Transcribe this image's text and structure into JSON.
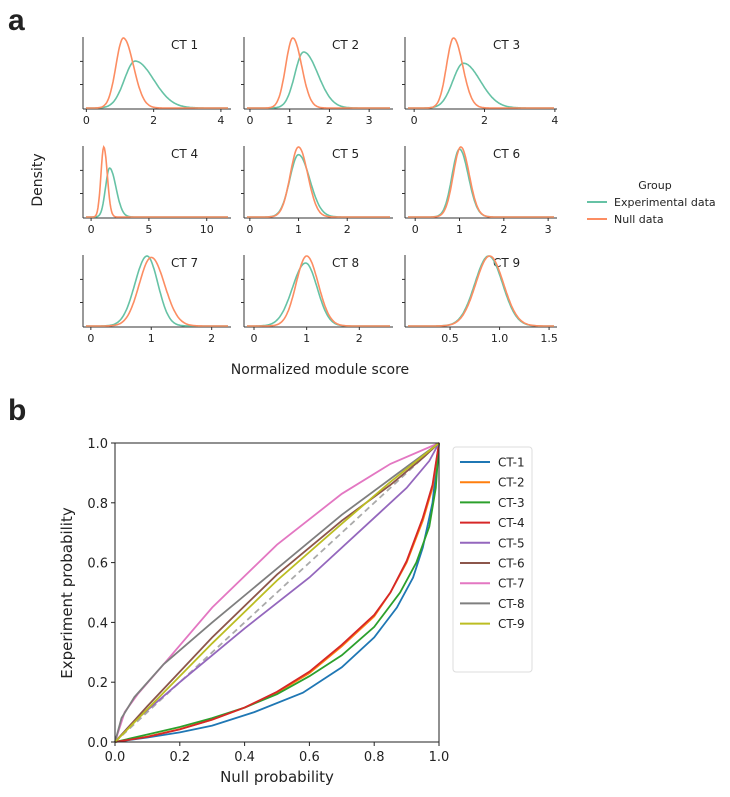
{
  "panel_labels": {
    "a": "a",
    "b": "b"
  },
  "chart_data": [
    {
      "type": "line",
      "subtype": "density",
      "panel": "a",
      "xlabel": "Normalized module score",
      "ylabel": "Density",
      "legend": {
        "title": "Group",
        "placement": "right",
        "entries": [
          "Experimental data",
          "Null data"
        ]
      },
      "colors": {
        "Experimental data": "#66c2a5",
        "Null data": "#fc8d62"
      },
      "subplots": [
        {
          "title": "CT 1",
          "xlim": [
            -0.1,
            4.3
          ],
          "xticks": [
            0,
            2,
            4
          ],
          "xtick_labels": [
            "0",
            "2",
            "4"
          ],
          "null": {
            "mode": 1.1,
            "sd_left": 0.22,
            "sd_right": 0.3,
            "peak": 1.0
          },
          "exp": {
            "mode": 1.45,
            "sd_left": 0.32,
            "sd_right": 0.55,
            "peak": 0.67
          }
        },
        {
          "title": "CT 2",
          "xlim": [
            -0.15,
            3.6
          ],
          "xticks": [
            0,
            1,
            2,
            3
          ],
          "xtick_labels": [
            "0",
            "1",
            "2",
            "3"
          ],
          "null": {
            "mode": 1.08,
            "sd_left": 0.18,
            "sd_right": 0.22,
            "peak": 1.0
          },
          "exp": {
            "mode": 1.35,
            "sd_left": 0.22,
            "sd_right": 0.36,
            "peak": 0.8
          }
        },
        {
          "title": "CT 3",
          "xlim": [
            -0.26,
            4.06
          ],
          "xticks": [
            0,
            2,
            4
          ],
          "xtick_labels": [
            "0",
            "2",
            "4"
          ],
          "null": {
            "mode": 1.12,
            "sd_left": 0.2,
            "sd_right": 0.26,
            "peak": 1.0
          },
          "exp": {
            "mode": 1.4,
            "sd_left": 0.3,
            "sd_right": 0.48,
            "peak": 0.64
          }
        },
        {
          "title": "CT 4",
          "xlim": [
            -0.7,
            12.1
          ],
          "xticks": [
            0,
            5,
            10
          ],
          "xtick_labels": [
            "0",
            "5",
            "10"
          ],
          "null": {
            "mode": 1.1,
            "sd_left": 0.25,
            "sd_right": 0.3,
            "peak": 1.0
          },
          "exp": {
            "mode": 1.6,
            "sd_left": 0.35,
            "sd_right": 0.55,
            "peak": 0.7
          }
        },
        {
          "title": "CT 5",
          "xlim": [
            -0.12,
            2.94
          ],
          "xticks": [
            0,
            1,
            2
          ],
          "xtick_labels": [
            "0",
            "1",
            "2"
          ],
          "null": {
            "mode": 1.0,
            "sd_left": 0.17,
            "sd_right": 0.19,
            "peak": 1.0
          },
          "exp": {
            "mode": 1.0,
            "sd_left": 0.18,
            "sd_right": 0.23,
            "peak": 0.89
          }
        },
        {
          "title": "CT 6",
          "xlim": [
            -0.23,
            3.2
          ],
          "xticks": [
            0,
            1,
            2,
            3
          ],
          "xtick_labels": [
            "0",
            "1",
            "2",
            "3"
          ],
          "null": {
            "mode": 1.03,
            "sd_left": 0.17,
            "sd_right": 0.19,
            "peak": 1.0
          },
          "exp": {
            "mode": 1.0,
            "sd_left": 0.17,
            "sd_right": 0.2,
            "peak": 0.97
          }
        },
        {
          "title": "CT 7",
          "xlim": [
            -0.13,
            2.32
          ],
          "xticks": [
            0,
            1,
            2
          ],
          "xtick_labels": [
            "0",
            "1",
            "2"
          ],
          "null": {
            "mode": 1.0,
            "sd_left": 0.2,
            "sd_right": 0.22,
            "peak": 0.98
          },
          "exp": {
            "mode": 0.93,
            "sd_left": 0.2,
            "sd_right": 0.18,
            "peak": 1.0
          }
        },
        {
          "title": "CT 8",
          "xlim": [
            -0.19,
            2.64
          ],
          "xticks": [
            0,
            1,
            2
          ],
          "xtick_labels": [
            "0",
            "1",
            "2"
          ],
          "null": {
            "mode": 1.0,
            "sd_left": 0.2,
            "sd_right": 0.22,
            "peak": 1.0
          },
          "exp": {
            "mode": 0.98,
            "sd_left": 0.25,
            "sd_right": 0.22,
            "peak": 0.9
          }
        },
        {
          "title": "CT 9",
          "xlim": [
            0.045,
            1.58
          ],
          "xticks": [
            0.5,
            1.0,
            1.5
          ],
          "xtick_labels": [
            "0.5",
            "1.0",
            "1.5"
          ],
          "null": {
            "mode": 0.9,
            "sd_left": 0.14,
            "sd_right": 0.14,
            "peak": 1.0
          },
          "exp": {
            "mode": 0.89,
            "sd_left": 0.14,
            "sd_right": 0.14,
            "peak": 1.0
          }
        }
      ]
    },
    {
      "type": "line",
      "panel": "b",
      "xlabel": "Null probability",
      "ylabel": "Experiment probability",
      "xlim": [
        0,
        1
      ],
      "ylim": [
        0,
        1
      ],
      "xticks": [
        "0.0",
        "0.2",
        "0.4",
        "0.6",
        "0.8",
        "1.0"
      ],
      "yticks": [
        "0.0",
        "0.2",
        "0.4",
        "0.6",
        "0.8",
        "1.0"
      ],
      "legend_placement": "outside-right",
      "reference_line": {
        "style": "dashed",
        "color": "#aaaaaa",
        "points": [
          [
            0,
            0
          ],
          [
            1,
            1
          ]
        ]
      },
      "series": [
        {
          "name": "CT-1",
          "color": "#1f77b4",
          "points": [
            [
              0,
              0
            ],
            [
              0.1,
              0.015
            ],
            [
              0.2,
              0.032
            ],
            [
              0.3,
              0.055
            ],
            [
              0.43,
              0.1
            ],
            [
              0.58,
              0.165
            ],
            [
              0.7,
              0.25
            ],
            [
              0.8,
              0.35
            ],
            [
              0.87,
              0.45
            ],
            [
              0.92,
              0.55
            ],
            [
              0.95,
              0.65
            ],
            [
              0.98,
              0.8
            ],
            [
              1,
              1
            ]
          ]
        },
        {
          "name": "CT-2",
          "color": "#ff7f0e",
          "points": [
            [
              0,
              0
            ],
            [
              0.1,
              0.018
            ],
            [
              0.2,
              0.043
            ],
            [
              0.3,
              0.075
            ],
            [
              0.4,
              0.115
            ],
            [
              0.5,
              0.165
            ],
            [
              0.6,
              0.23
            ],
            [
              0.7,
              0.32
            ],
            [
              0.8,
              0.42
            ],
            [
              0.85,
              0.5
            ],
            [
              0.9,
              0.6
            ],
            [
              0.95,
              0.74
            ],
            [
              0.98,
              0.85
            ],
            [
              1,
              1
            ]
          ]
        },
        {
          "name": "CT-3",
          "color": "#2ca02c",
          "points": [
            [
              0,
              0
            ],
            [
              0.1,
              0.025
            ],
            [
              0.2,
              0.05
            ],
            [
              0.3,
              0.08
            ],
            [
              0.4,
              0.115
            ],
            [
              0.5,
              0.16
            ],
            [
              0.6,
              0.22
            ],
            [
              0.7,
              0.29
            ],
            [
              0.8,
              0.385
            ],
            [
              0.88,
              0.5
            ],
            [
              0.93,
              0.6
            ],
            [
              0.97,
              0.72
            ],
            [
              0.99,
              0.85
            ],
            [
              1,
              1
            ]
          ]
        },
        {
          "name": "CT-4",
          "color": "#d62728",
          "points": [
            [
              0,
              0
            ],
            [
              0.1,
              0.017
            ],
            [
              0.2,
              0.042
            ],
            [
              0.3,
              0.075
            ],
            [
              0.4,
              0.115
            ],
            [
              0.5,
              0.168
            ],
            [
              0.6,
              0.235
            ],
            [
              0.7,
              0.325
            ],
            [
              0.8,
              0.425
            ],
            [
              0.85,
              0.5
            ],
            [
              0.9,
              0.605
            ],
            [
              0.95,
              0.75
            ],
            [
              0.98,
              0.86
            ],
            [
              1,
              1
            ]
          ]
        },
        {
          "name": "CT-5",
          "color": "#9467bd",
          "points": [
            [
              0,
              0
            ],
            [
              0.05,
              0.06
            ],
            [
              0.2,
              0.2
            ],
            [
              0.4,
              0.38
            ],
            [
              0.6,
              0.55
            ],
            [
              0.8,
              0.75
            ],
            [
              0.9,
              0.85
            ],
            [
              0.97,
              0.94
            ],
            [
              1,
              1
            ]
          ]
        },
        {
          "name": "CT-6",
          "color": "#8c564b",
          "points": [
            [
              0,
              0
            ],
            [
              0.1,
              0.12
            ],
            [
              0.3,
              0.35
            ],
            [
              0.5,
              0.56
            ],
            [
              0.7,
              0.74
            ],
            [
              0.85,
              0.86
            ],
            [
              0.95,
              0.95
            ],
            [
              1,
              1
            ]
          ]
        },
        {
          "name": "CT-7",
          "color": "#e377c2",
          "points": [
            [
              0,
              0
            ],
            [
              0.03,
              0.1
            ],
            [
              0.07,
              0.16
            ],
            [
              0.15,
              0.26
            ],
            [
              0.3,
              0.45
            ],
            [
              0.5,
              0.66
            ],
            [
              0.7,
              0.83
            ],
            [
              0.85,
              0.93
            ],
            [
              1,
              1
            ]
          ]
        },
        {
          "name": "CT-8",
          "color": "#7f7f7f",
          "points": [
            [
              0,
              0
            ],
            [
              0.02,
              0.08
            ],
            [
              0.06,
              0.15
            ],
            [
              0.15,
              0.26
            ],
            [
              0.3,
              0.4
            ],
            [
              0.5,
              0.58
            ],
            [
              0.7,
              0.76
            ],
            [
              0.85,
              0.88
            ],
            [
              1,
              1
            ]
          ]
        },
        {
          "name": "CT-9",
          "color": "#bcbd22",
          "points": [
            [
              0,
              0
            ],
            [
              0.1,
              0.11
            ],
            [
              0.3,
              0.33
            ],
            [
              0.5,
              0.54
            ],
            [
              0.7,
              0.73
            ],
            [
              0.85,
              0.87
            ],
            [
              1,
              1
            ]
          ]
        }
      ]
    }
  ]
}
